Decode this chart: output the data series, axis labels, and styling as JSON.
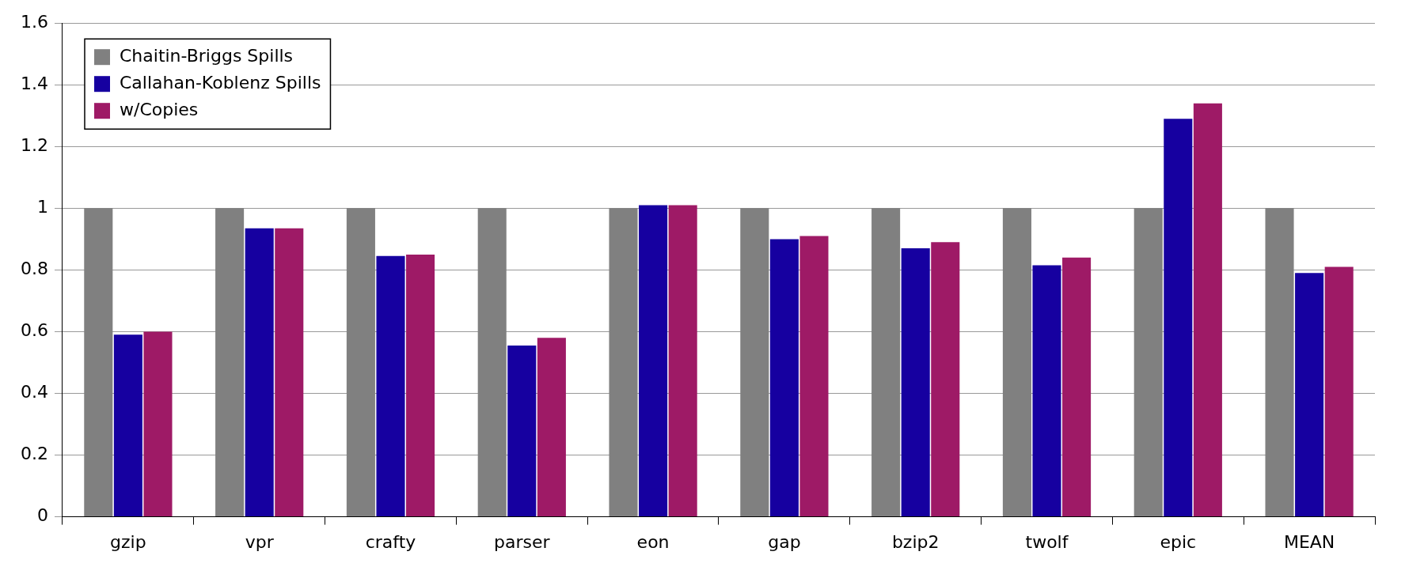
{
  "chart_data": {
    "type": "bar",
    "categories": [
      "gzip",
      "vpr",
      "crafty",
      "parser",
      "eon",
      "gap",
      "bzip2",
      "twolf",
      "epic",
      "MEAN"
    ],
    "series": [
      {
        "name": "Chaitin-Briggs Spills",
        "color": "#808080",
        "values": [
          1,
          1,
          1,
          1,
          1,
          1,
          1,
          1,
          1,
          1
        ]
      },
      {
        "name": "Callahan-Koblenz Spills",
        "color": "#1600a0",
        "values": [
          0.59,
          0.935,
          0.845,
          0.555,
          1.01,
          0.9,
          0.87,
          0.815,
          1.29,
          0.79
        ]
      },
      {
        "name": "w/Copies",
        "color": "#9e1a66",
        "values": [
          0.6,
          0.935,
          0.85,
          0.58,
          1.01,
          0.91,
          0.89,
          0.84,
          1.34,
          0.81
        ]
      }
    ],
    "ylim": [
      0,
      1.6
    ],
    "yticks": [
      0,
      0.2,
      0.4,
      0.6,
      0.8,
      1,
      1.2,
      1.4,
      1.6
    ],
    "grid": "y",
    "legend": "top left"
  }
}
